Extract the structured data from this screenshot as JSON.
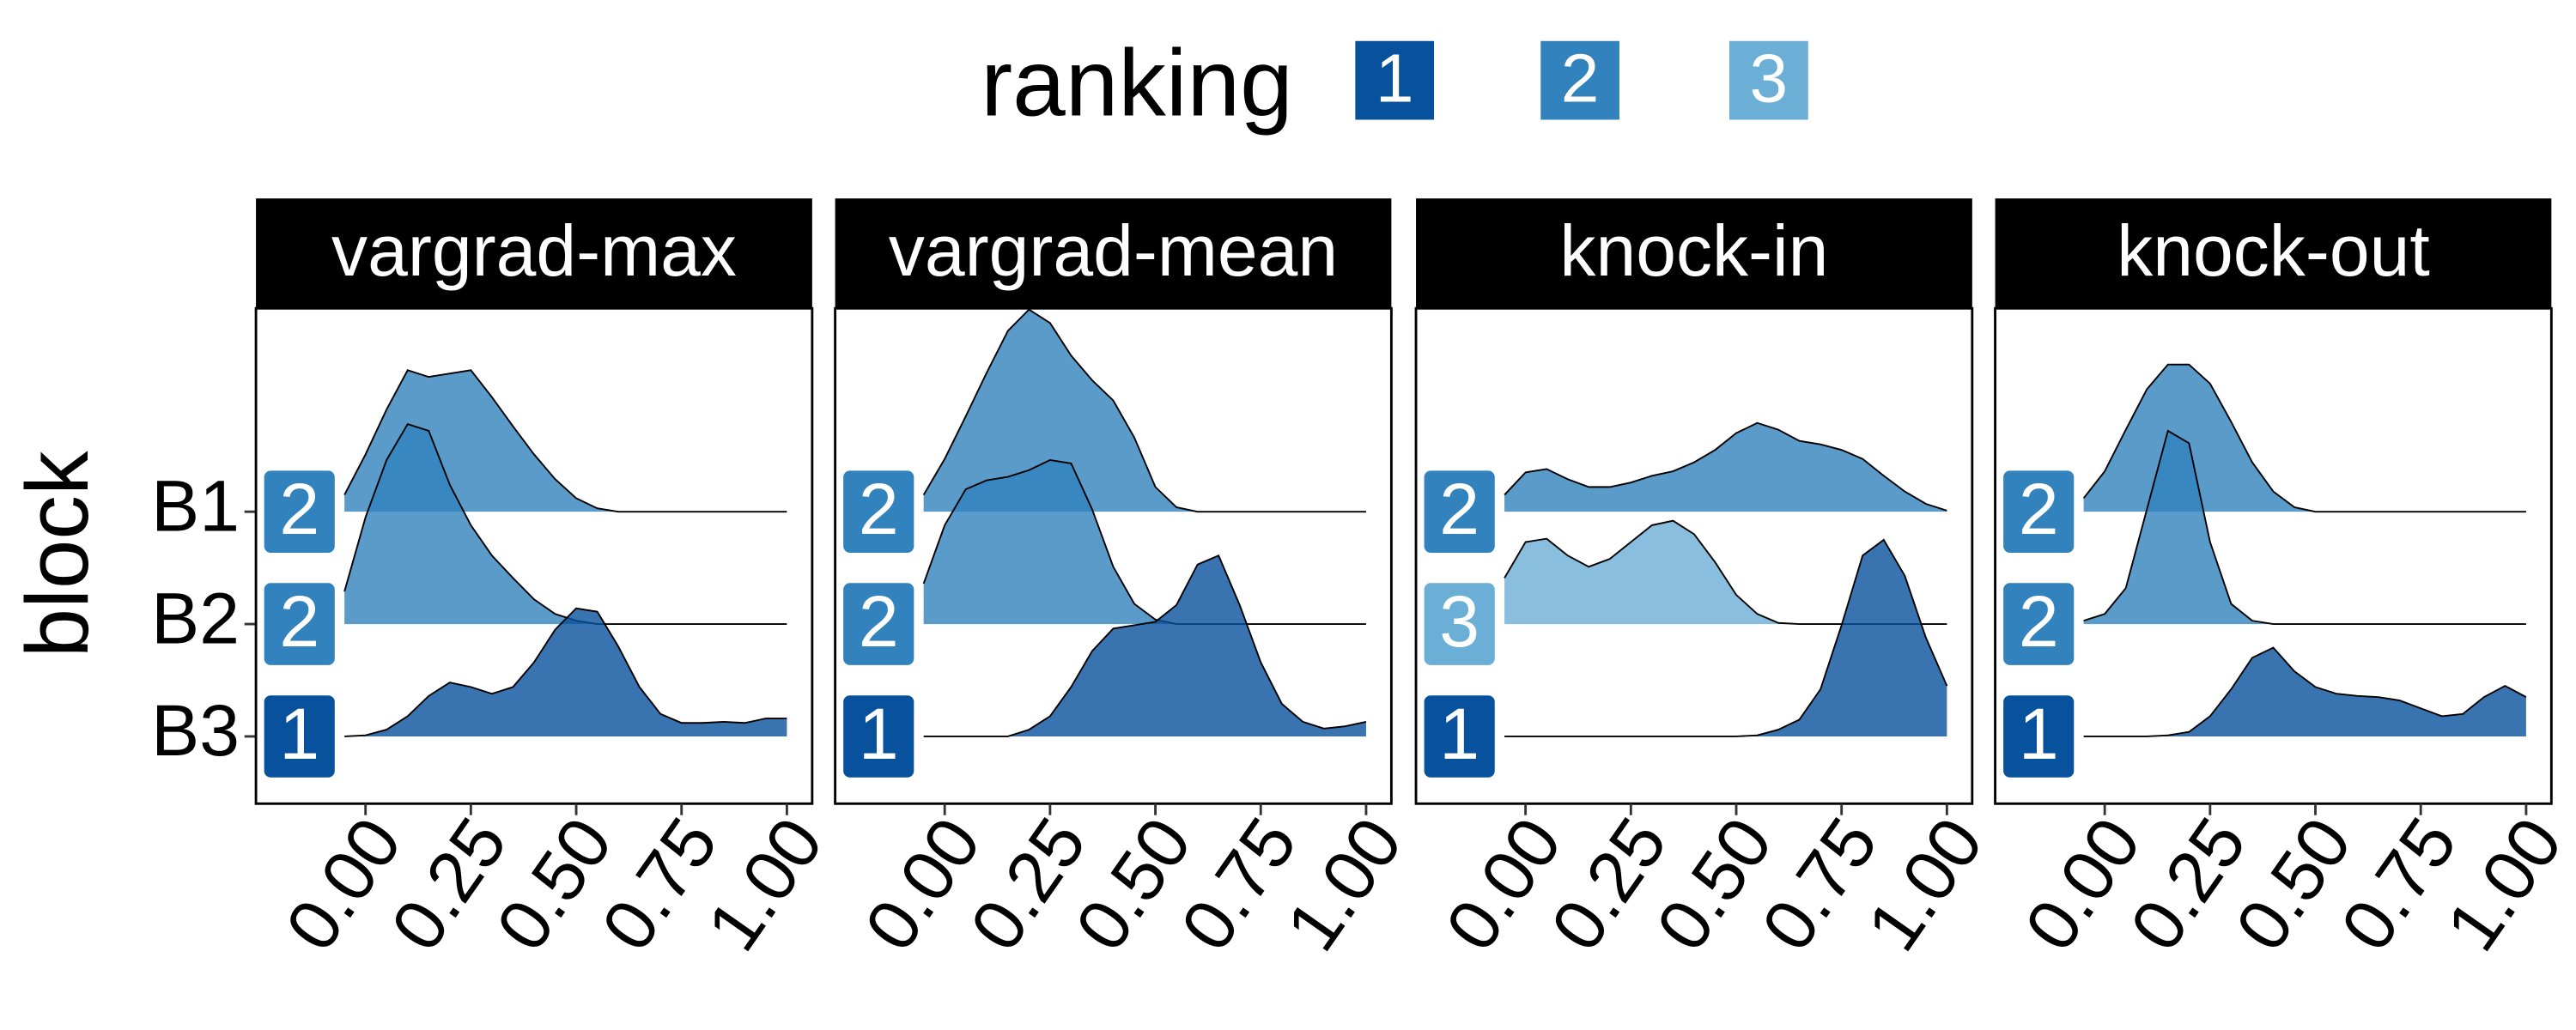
{
  "chart_data": {
    "type": "ridgeline",
    "legend_title": "ranking",
    "rankings": [
      {
        "name": "1",
        "color": "#08519c"
      },
      {
        "name": "2",
        "color": "#3182bd"
      },
      {
        "name": "3",
        "color": "#6baed6"
      }
    ],
    "y_label": "block",
    "categories": [
      "B1",
      "B2",
      "B3"
    ],
    "x": [
      -0.05,
      0,
      0.05,
      0.1,
      0.15,
      0.2,
      0.25,
      0.3,
      0.35,
      0.4,
      0.45,
      0.5,
      0.55,
      0.6,
      0.65,
      0.7,
      0.75,
      0.8,
      0.85,
      0.9,
      0.95,
      1.0
    ],
    "xlim": [
      -0.26,
      1.06
    ],
    "xticks": [
      {
        "value": 0,
        "label": "0.00"
      },
      {
        "value": 0.25,
        "label": "0.25"
      },
      {
        "value": 0.5,
        "label": "0.50"
      },
      {
        "value": 0.75,
        "label": "0.75"
      },
      {
        "value": 1,
        "label": "1.00"
      }
    ],
    "panels": [
      {
        "title": "vargrad-max",
        "ranks": [
          2,
          2,
          1
        ],
        "series": [
          {
            "values": [
              0.15,
              0.51,
              0.91,
              1.26,
              1.2,
              1.23,
              1.26,
              1.02,
              0.76,
              0.51,
              0.29,
              0.12,
              0.03,
              0,
              0,
              0,
              0,
              0,
              0,
              0,
              0,
              0
            ]
          },
          {
            "values": [
              0.29,
              0.95,
              1.46,
              1.78,
              1.72,
              1.24,
              0.88,
              0.61,
              0.41,
              0.22,
              0.09,
              0.03,
              0,
              0,
              0,
              0,
              0,
              0,
              0,
              0,
              0,
              0
            ]
          },
          {
            "values": [
              0,
              0.01,
              0.06,
              0.18,
              0.36,
              0.48,
              0.44,
              0.38,
              0.44,
              0.66,
              0.95,
              1.14,
              1.11,
              0.8,
              0.44,
              0.2,
              0.12,
              0.12,
              0.13,
              0.12,
              0.16,
              0.16
            ]
          }
        ]
      },
      {
        "title": "vargrad-mean",
        "ranks": [
          2,
          2,
          1
        ],
        "series": [
          {
            "values": [
              0.15,
              0.47,
              0.85,
              1.24,
              1.61,
              1.8,
              1.68,
              1.39,
              1.17,
              0.99,
              0.66,
              0.22,
              0.04,
              0,
              0,
              0,
              0,
              0,
              0,
              0,
              0,
              0
            ]
          },
          {
            "values": [
              0.36,
              0.88,
              1.2,
              1.28,
              1.31,
              1.37,
              1.46,
              1.43,
              1.02,
              0.51,
              0.18,
              0.04,
              0,
              0,
              0,
              0,
              0,
              0,
              0,
              0,
              0,
              0
            ]
          },
          {
            "values": [
              0,
              0,
              0,
              0,
              0,
              0.06,
              0.18,
              0.44,
              0.76,
              0.96,
              0.99,
              1.02,
              1.17,
              1.53,
              1.61,
              1.17,
              0.66,
              0.29,
              0.13,
              0.07,
              0.09,
              0.13
            ]
          }
        ]
      },
      {
        "title": "knock-in",
        "ranks": [
          2,
          3,
          1
        ],
        "series": [
          {
            "values": [
              0.15,
              0.35,
              0.38,
              0.29,
              0.22,
              0.22,
              0.26,
              0.32,
              0.36,
              0.44,
              0.55,
              0.7,
              0.79,
              0.73,
              0.63,
              0.6,
              0.55,
              0.47,
              0.32,
              0.18,
              0.07,
              0.01
            ]
          },
          {
            "values": [
              0.41,
              0.73,
              0.76,
              0.61,
              0.51,
              0.58,
              0.73,
              0.88,
              0.92,
              0.8,
              0.55,
              0.26,
              0.09,
              0.01,
              0,
              0,
              0,
              0,
              0,
              0,
              0,
              0
            ]
          },
          {
            "values": [
              0,
              0,
              0,
              0,
              0,
              0,
              0,
              0,
              0,
              0,
              0,
              0,
              0.01,
              0.06,
              0.15,
              0.42,
              0.99,
              1.61,
              1.75,
              1.43,
              0.88,
              0.45
            ]
          }
        ]
      },
      {
        "title": "knock-out",
        "ranks": [
          2,
          2,
          1
        ],
        "series": [
          {
            "values": [
              0.12,
              0.36,
              0.73,
              1.09,
              1.31,
              1.31,
              1.14,
              0.8,
              0.44,
              0.18,
              0.04,
              0,
              0,
              0,
              0,
              0,
              0,
              0,
              0,
              0,
              0,
              0
            ]
          },
          {
            "values": [
              0.03,
              0.09,
              0.32,
              1.02,
              1.72,
              1.61,
              0.73,
              0.18,
              0.03,
              0,
              0,
              0,
              0,
              0,
              0,
              0,
              0,
              0,
              0,
              0,
              0,
              0
            ]
          },
          {
            "values": [
              0,
              0,
              0,
              0,
              0.01,
              0.04,
              0.18,
              0.42,
              0.7,
              0.79,
              0.58,
              0.44,
              0.38,
              0.36,
              0.35,
              0.32,
              0.25,
              0.18,
              0.2,
              0.35,
              0.45,
              0.35
            ]
          }
        ]
      }
    ]
  }
}
